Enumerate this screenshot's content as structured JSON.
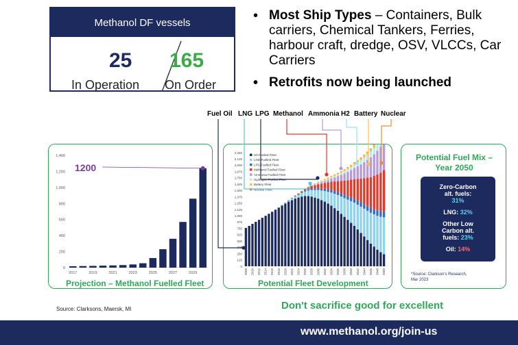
{
  "stat_card": {
    "header": "Methanol DF vessels",
    "in_operation_value": "25",
    "in_operation_label": "In Operation",
    "on_order_value": "165",
    "on_order_label": "On Order"
  },
  "bullets": {
    "b1_bold": "Most Ship Types",
    "b1_rest": " – Containers, Bulk carriers, Chemical Tankers, Ferries, harbour craft, dredge, OSV, VLCCs, Car Carriers",
    "b2_bold": "Retrofits now being launched"
  },
  "fuel_labels": [
    "Fuel Oil",
    "LNG",
    "LPG",
    "Methanol",
    "Ammonia",
    "H2",
    "Battery",
    "Nuclear"
  ],
  "colors": {
    "navy": "#1c2a5e",
    "green": "#2fa858",
    "purple": "#7a3c9a",
    "methanol_red": "#e23a2a",
    "lng_blue": "#8fd3ee",
    "ammonia_purple": "#b79ad8",
    "battery_yellow": "#f4c24a",
    "nuclear_orange": "#ee8a3a",
    "h2_cyan": "#bfe8f2"
  },
  "left_panel": {
    "title": "Projection – Methanol Fuelled Fleet",
    "highlight": "1200"
  },
  "middle_panel": {
    "title": "Potential Fleet Development",
    "legend": [
      "Oil Fuelled Fleet",
      "LNG Fuelled Fleet",
      "LPG Fuelled Fleet",
      "Methanol Fuelled Fleet",
      "Ammonia Fuelled Fleet",
      "Hydrogen Fuelled Fleet",
      "Battery Fleet",
      "Nuclear Fleet"
    ]
  },
  "right_panel": {
    "title_line1": "Potential Fuel Mix –",
    "title_line2": "Year 2050",
    "zero_l1": "Zero-Carbon",
    "zero_l2": "alt. fuels:",
    "zero_val": "31%",
    "lng_label": "LNG: ",
    "lng_val": "32%",
    "other_l1": "Other Low",
    "other_l2": "Carbon alt.",
    "other_l3": "fuels: ",
    "other_val": "23%",
    "oil_label": "Oil: ",
    "oil_val": "14%",
    "source_l1": "*Source: Clarkson's Research,",
    "source_l2": "Mar 2023"
  },
  "source_note": "Source:  Clarksons, Maersk, MI",
  "tagline": "Don't sacrifice good for excellent",
  "footer_url": "www.methanol.org/join-us",
  "chart_data": [
    {
      "type": "bar",
      "title": "Projection – Methanol Fuelled Fleet",
      "categories": [
        "2017",
        "2018",
        "2019",
        "2020",
        "2021",
        "2022",
        "2023",
        "2024",
        "2025",
        "2026",
        "2027",
        "2028",
        "2029",
        "2030"
      ],
      "x_tick_labels": [
        "2017",
        "2019",
        "2021",
        "2023",
        "2025",
        "2027",
        "2029"
      ],
      "values": [
        18,
        20,
        22,
        25,
        28,
        32,
        40,
        55,
        120,
        230,
        360,
        570,
        860,
        1240
      ],
      "ylim": [
        0,
        1400
      ],
      "y_ticks": [
        0,
        200,
        400,
        600,
        800,
        1000,
        1200,
        1400
      ],
      "annotation": "1200"
    },
    {
      "type": "bar",
      "title": "Potential Fleet Development",
      "categories": [
        "2008",
        "2009",
        "2010",
        "2011",
        "2012",
        "2013",
        "2014",
        "2015",
        "2016",
        "2017",
        "2018",
        "2019",
        "2020",
        "2021",
        "2022",
        "2023",
        "2024",
        "2025",
        "2026",
        "2027",
        "2028",
        "2029",
        "2030",
        "2031",
        "2032",
        "2033",
        "2034",
        "2035",
        "2036",
        "2037",
        "2038",
        "2039",
        "2040",
        "2041",
        "2042",
        "2043",
        "2044",
        "2045",
        "2046",
        "2047",
        "2048",
        "2049",
        "2050"
      ],
      "x_tick_labels": [
        "2008",
        "2010",
        "2012",
        "2014",
        "2016",
        "2018",
        "2020",
        "2022",
        "2024",
        "2026",
        "2028",
        "2030",
        "2032",
        "2034",
        "2036",
        "2038",
        "2040",
        "2042",
        "2044",
        "2046",
        "2048",
        "2050"
      ],
      "ylim": [
        0,
        2250
      ],
      "y_ticks": [
        0,
        125,
        250,
        375,
        500,
        625,
        750,
        875,
        1000,
        1125,
        1250,
        1375,
        1500,
        1625,
        1750,
        1875,
        2000,
        2125,
        2250
      ],
      "y_tick_labels": [
        "0",
        "125",
        "250",
        "375",
        "500",
        "625",
        "750",
        "875",
        "1,000",
        "1,125",
        "1,250",
        "1,375",
        "1,500",
        "1,625",
        "1,750",
        "1,875",
        "2,000",
        "2,125",
        "2,250"
      ],
      "series": [
        {
          "name": "Oil Fuelled Fleet",
          "values": [
            760,
            800,
            840,
            880,
            920,
            960,
            1000,
            1040,
            1080,
            1120,
            1160,
            1200,
            1240,
            1280,
            1310,
            1340,
            1360,
            1380,
            1390,
            1390,
            1380,
            1360,
            1340,
            1310,
            1280,
            1240,
            1200,
            1150,
            1100,
            1040,
            980,
            920,
            860,
            800,
            730,
            660,
            590,
            520,
            450,
            390,
            330,
            280,
            240
          ]
        },
        {
          "name": "LNG Fuelled Fleet",
          "values": [
            0,
            0,
            0,
            0,
            0,
            0,
            2,
            4,
            6,
            8,
            10,
            14,
            18,
            24,
            32,
            42,
            56,
            72,
            90,
            110,
            130,
            150,
            170,
            190,
            210,
            235,
            260,
            285,
            310,
            340,
            370,
            400,
            430,
            460,
            490,
            520,
            550,
            580,
            610,
            640,
            670,
            700,
            730
          ]
        },
        {
          "name": "LPG Fuelled Fleet",
          "values": [
            0,
            0,
            0,
            0,
            0,
            0,
            0,
            0,
            0,
            0,
            1,
            2,
            3,
            5,
            7,
            10,
            13,
            16,
            20,
            24,
            28,
            32,
            36,
            40,
            44,
            48,
            52,
            56,
            60,
            64,
            68,
            72,
            76,
            80,
            84,
            88,
            92,
            96,
            100,
            104,
            108,
            112,
            116
          ]
        },
        {
          "name": "Methanol Fuelled Fleet",
          "values": [
            0,
            0,
            0,
            0,
            0,
            0,
            0,
            0,
            0,
            0,
            0,
            1,
            2,
            3,
            5,
            8,
            12,
            18,
            26,
            36,
            48,
            62,
            78,
            96,
            116,
            138,
            162,
            188,
            216,
            246,
            278,
            312,
            348,
            386,
            426,
            468,
            512,
            558,
            606,
            656,
            708,
            762,
            818
          ]
        },
        {
          "name": "Ammonia Fuelled Fleet",
          "values": [
            0,
            0,
            0,
            0,
            0,
            0,
            0,
            0,
            0,
            0,
            0,
            0,
            0,
            0,
            0,
            0,
            1,
            2,
            4,
            7,
            11,
            16,
            22,
            30,
            40,
            52,
            66,
            82,
            100,
            120,
            142,
            166,
            192,
            220,
            250,
            282,
            316,
            352,
            390,
            430,
            472,
            516,
            562
          ]
        },
        {
          "name": "Hydrogen Fuelled Fleet",
          "values": [
            0,
            0,
            0,
            0,
            0,
            0,
            0,
            0,
            0,
            0,
            0,
            0,
            0,
            0,
            0,
            0,
            0,
            0,
            1,
            2,
            3,
            5,
            7,
            10,
            13,
            17,
            21,
            26,
            31,
            37,
            43,
            50,
            57,
            65,
            73,
            82,
            91,
            101,
            111,
            122,
            133,
            145,
            157
          ]
        },
        {
          "name": "Battery Fleet",
          "values": [
            0,
            0,
            0,
            0,
            0,
            0,
            0,
            0,
            0,
            1,
            1,
            2,
            3,
            4,
            5,
            6,
            8,
            10,
            12,
            14,
            16,
            18,
            20,
            22,
            24,
            26,
            28,
            30,
            32,
            34,
            36,
            38,
            40,
            42,
            44,
            46,
            48,
            50,
            52,
            54,
            56,
            58,
            60
          ]
        },
        {
          "name": "Nuclear Fleet",
          "values": [
            0,
            0,
            0,
            0,
            0,
            0,
            0,
            0,
            0,
            0,
            0,
            0,
            0,
            0,
            0,
            0,
            0,
            0,
            0,
            0,
            0,
            0,
            0,
            1,
            1,
            2,
            2,
            3,
            3,
            4,
            5,
            6,
            7,
            8,
            9,
            10,
            11,
            12,
            13,
            14,
            15,
            16,
            18
          ]
        }
      ]
    }
  ]
}
